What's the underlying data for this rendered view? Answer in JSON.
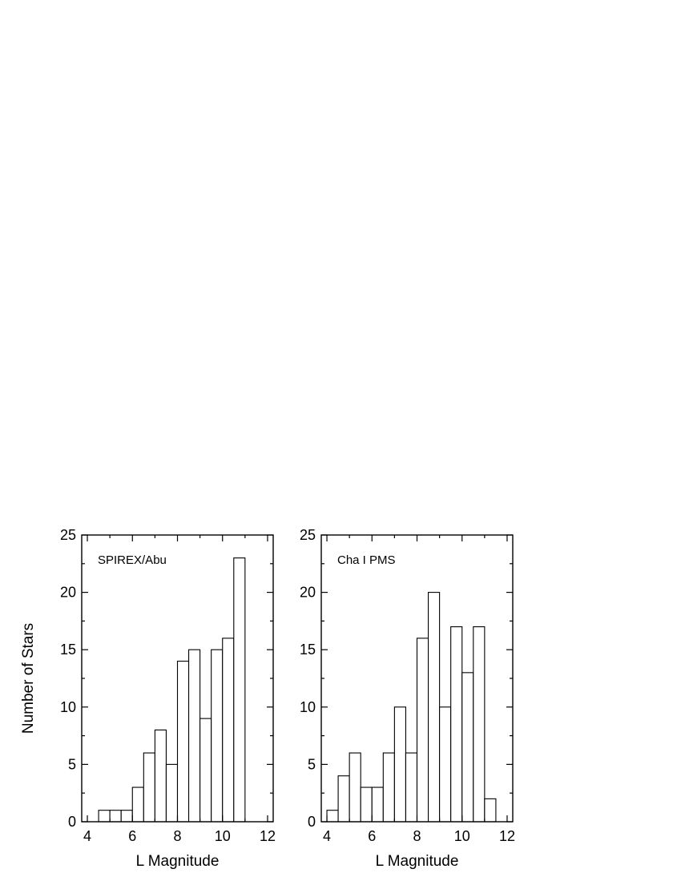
{
  "figure": {
    "shared_ylabel": "Number of Stars"
  },
  "chart_data": [
    {
      "type": "bar",
      "histogram": true,
      "label": "SPIREX/Abu",
      "xlabel": "L Magnitude",
      "ylabel": "Number of Stars",
      "xlim": [
        3.75,
        12.25
      ],
      "ylim": [
        0,
        25
      ],
      "xticks": [
        4,
        6,
        8,
        10,
        12
      ],
      "yticks": [
        0,
        5,
        10,
        15,
        20,
        25
      ],
      "bin_width": 0.5,
      "bin_starts": [
        4.5,
        5.0,
        5.5,
        6.0,
        6.5,
        7.0,
        7.5,
        8.0,
        8.5,
        9.0,
        9.5,
        10.0,
        10.5
      ],
      "values": [
        1,
        1,
        1,
        3,
        6,
        8,
        5,
        14,
        15,
        9,
        15,
        16,
        23
      ],
      "grid": false
    },
    {
      "type": "bar",
      "histogram": true,
      "label": "Cha I PMS",
      "xlabel": "L Magnitude",
      "ylabel": "Number of Stars",
      "xlim": [
        3.75,
        12.25
      ],
      "ylim": [
        0,
        25
      ],
      "xticks": [
        4,
        6,
        8,
        10,
        12
      ],
      "yticks": [
        0,
        5,
        10,
        15,
        20,
        25
      ],
      "bin_width": 0.5,
      "bin_starts": [
        4.0,
        4.5,
        5.0,
        5.5,
        6.0,
        6.5,
        7.0,
        7.5,
        8.0,
        8.5,
        9.0,
        9.5,
        10.0,
        10.5,
        11.0
      ],
      "values": [
        1,
        4,
        6,
        3,
        3,
        6,
        10,
        6,
        16,
        20,
        10,
        17,
        13,
        17,
        2
      ],
      "grid": false
    }
  ]
}
